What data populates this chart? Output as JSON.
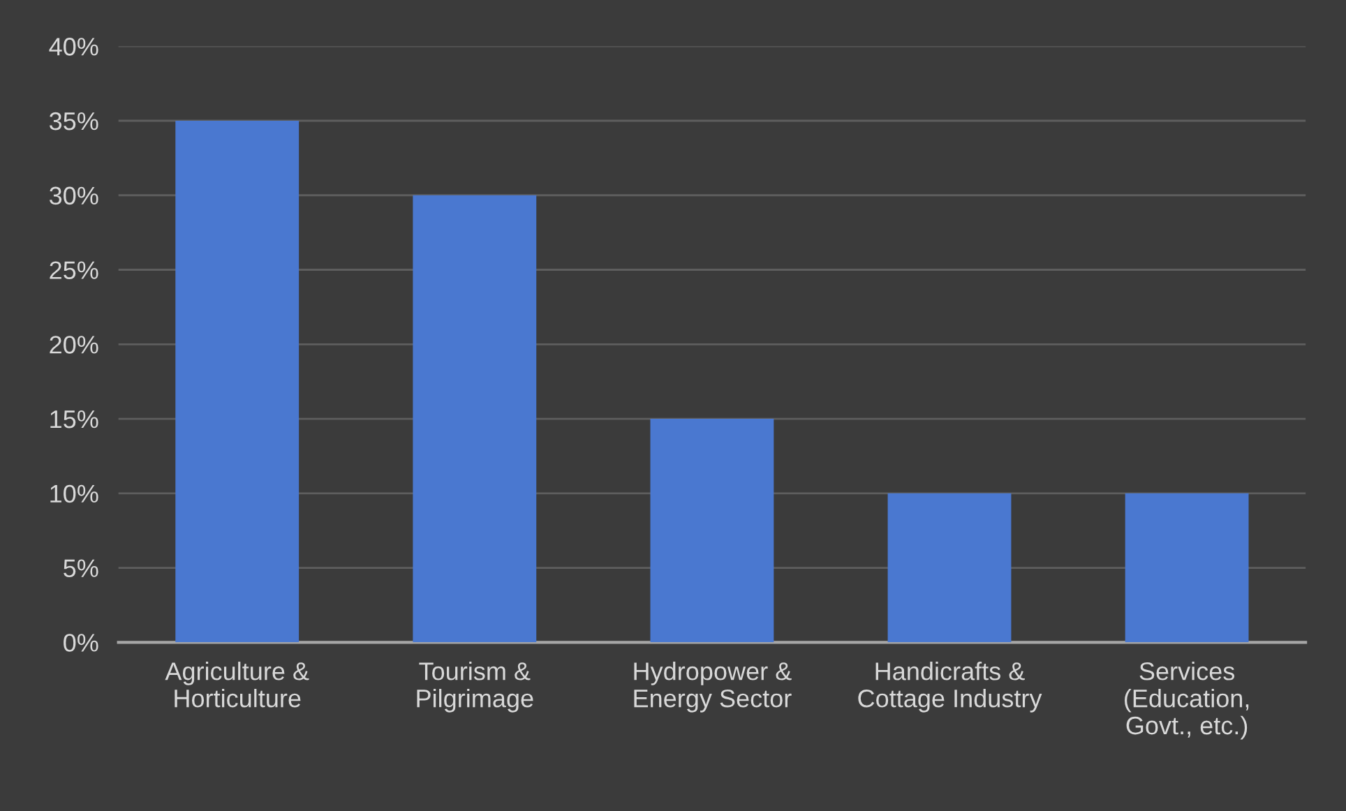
{
  "chart_data": {
    "type": "bar",
    "categories": [
      "Agriculture &\nHorticulture",
      "Tourism &\nPilgrimage",
      "Hydropower &\nEnergy Sector",
      "Handicrafts &\nCottage Industry",
      "Services\n(Education,\nGovt., etc.)"
    ],
    "values": [
      35,
      30,
      15,
      10,
      10
    ],
    "color": "#4a78d0",
    "ylim": [
      0,
      40
    ],
    "yticks": [
      {
        "value": 0,
        "label": "0%"
      },
      {
        "value": 5,
        "label": "5%"
      },
      {
        "value": 10,
        "label": "10%"
      },
      {
        "value": 15,
        "label": "15%"
      },
      {
        "value": 20,
        "label": "20%"
      },
      {
        "value": 25,
        "label": "25%"
      },
      {
        "value": 30,
        "label": "30%"
      },
      {
        "value": 35,
        "label": "35%"
      },
      {
        "value": 40,
        "label": "40%"
      }
    ],
    "grid": "y"
  }
}
